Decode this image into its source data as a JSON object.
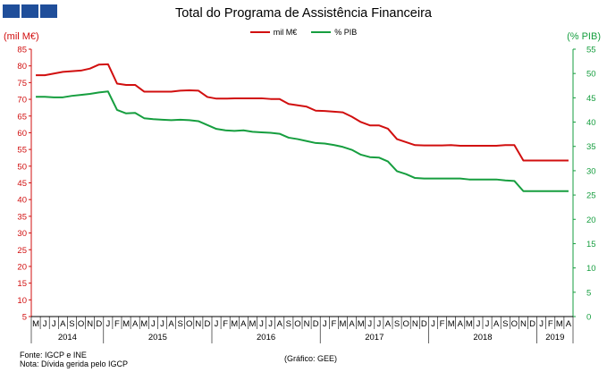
{
  "title": "Total do Programa de Assistência Financeira",
  "left_unit": "(mil M€)",
  "right_unit": "(% PIB)",
  "source": "Fonte: IGCP e INE",
  "note": "Nota: Dívida gerida pelo IGCP",
  "credit": "(Gráfico: GEE)",
  "colors": {
    "eur": "#d10f0f",
    "pib": "#169e3f",
    "logo": "#1f4e9a"
  },
  "chart_data": {
    "type": "line",
    "title": "Total do Programa de Assistência Financeira",
    "legend_position": "top-center",
    "grid": false,
    "y_left": {
      "label": "(mil M€)",
      "min": 5,
      "max": 85,
      "step": 5
    },
    "y_right": {
      "label": "(% PIB)",
      "min": 0,
      "max": 55,
      "step": 5
    },
    "month_labels": [
      "M",
      "J",
      "J",
      "A",
      "S",
      "O",
      "N",
      "D",
      "J",
      "F",
      "M",
      "A",
      "M",
      "J",
      "J",
      "A",
      "S",
      "O",
      "N",
      "D",
      "J",
      "F",
      "M",
      "A",
      "M",
      "J",
      "J",
      "A",
      "S",
      "O",
      "N",
      "D",
      "J",
      "F",
      "M",
      "A",
      "M",
      "J",
      "J",
      "A",
      "S",
      "O",
      "N",
      "D",
      "J",
      "F",
      "M",
      "A",
      "M",
      "J",
      "J",
      "A",
      "S",
      "O",
      "N",
      "D",
      "J",
      "F",
      "M",
      "A"
    ],
    "years": [
      {
        "label": "2014",
        "start": 0,
        "end": 7
      },
      {
        "label": "2015",
        "start": 8,
        "end": 19
      },
      {
        "label": "2016",
        "start": 20,
        "end": 31
      },
      {
        "label": "2017",
        "start": 32,
        "end": 43
      },
      {
        "label": "2018",
        "start": 44,
        "end": 55
      },
      {
        "label": "2019",
        "start": 56,
        "end": 59
      }
    ],
    "series": [
      {
        "name": "mil M€",
        "axis": "left",
        "color": "#d10f0f",
        "values": [
          77.2,
          77.2,
          77.7,
          78.2,
          78.4,
          78.6,
          79.2,
          80.4,
          80.5,
          74.7,
          74.3,
          74.3,
          72.3,
          72.3,
          72.3,
          72.3,
          72.6,
          72.7,
          72.6,
          70.7,
          70.2,
          70.2,
          70.3,
          70.3,
          70.3,
          70.3,
          70.1,
          70.1,
          68.6,
          68.2,
          67.8,
          66.6,
          66.5,
          66.3,
          66.1,
          64.8,
          63.2,
          62.2,
          62.2,
          61.2,
          58.1,
          57.2,
          56.3,
          56.2,
          56.2,
          56.2,
          56.3,
          56.1,
          56.1,
          56.1,
          56.1,
          56.1,
          56.3,
          56.3,
          51.7,
          51.7,
          51.7,
          51.7,
          51.7,
          51.7
        ]
      },
      {
        "name": "% PIB",
        "axis": "right",
        "color": "#169e3f",
        "values": [
          45.2,
          45.2,
          45.1,
          45.1,
          45.4,
          45.6,
          45.8,
          46.1,
          46.3,
          42.5,
          41.8,
          41.9,
          40.8,
          40.6,
          40.5,
          40.4,
          40.5,
          40.4,
          40.2,
          39.4,
          38.6,
          38.3,
          38.2,
          38.3,
          38.0,
          37.9,
          37.8,
          37.6,
          36.8,
          36.5,
          36.1,
          35.7,
          35.6,
          35.3,
          34.9,
          34.3,
          33.3,
          32.8,
          32.7,
          31.9,
          29.9,
          29.3,
          28.5,
          28.4,
          28.4,
          28.4,
          28.4,
          28.4,
          28.2,
          28.2,
          28.2,
          28.2,
          28.0,
          27.9,
          25.8,
          25.8,
          25.8,
          25.8,
          25.8,
          25.8
        ]
      }
    ]
  }
}
